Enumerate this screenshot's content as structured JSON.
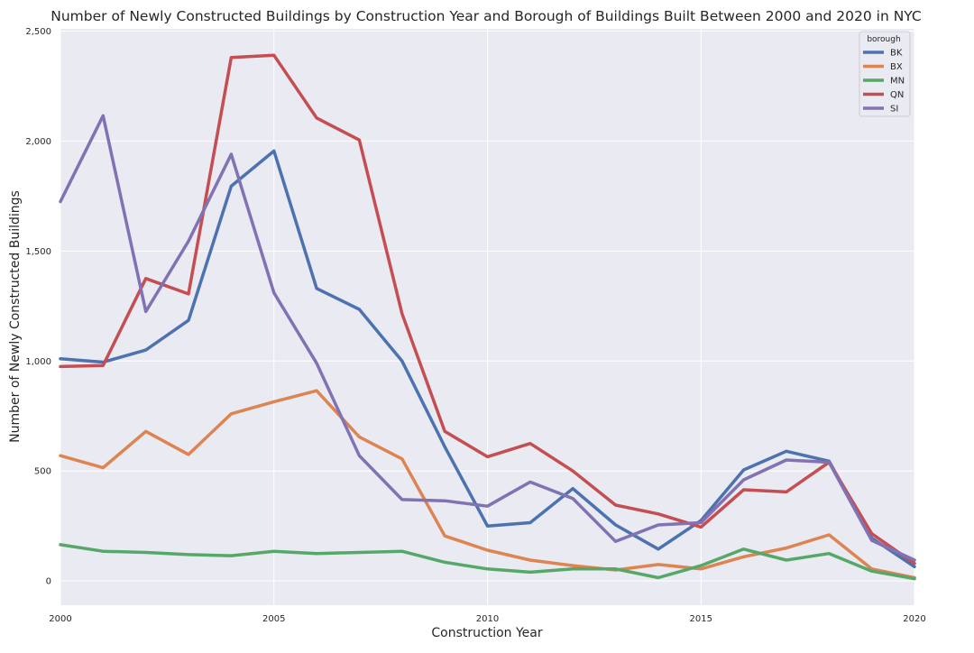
{
  "chart_data": {
    "type": "line",
    "title": "Number of Newly Constructed Buildings by Construction Year and Borough of Buildings Built Between 2000 and 2020 in NYC",
    "xlabel": "Construction Year",
    "ylabel": "Number of Newly Constructed Buildings",
    "xlim": [
      2000,
      2020
    ],
    "ylim": [
      -110,
      2510
    ],
    "x_ticks": [
      2000,
      2005,
      2010,
      2015,
      2020
    ],
    "y_ticks": [
      0,
      500,
      1000,
      1500,
      2000,
      2500
    ],
    "y_tick_labels": [
      "0",
      "500",
      "1,000",
      "1,500",
      "2,000",
      "2,500"
    ],
    "grid": true,
    "legend": {
      "title": "borough",
      "placement": "top-right"
    },
    "x": [
      2000,
      2001,
      2002,
      2003,
      2004,
      2005,
      2006,
      2007,
      2008,
      2009,
      2010,
      2011,
      2012,
      2013,
      2014,
      2015,
      2016,
      2017,
      2018,
      2019,
      2020
    ],
    "series": [
      {
        "name": "BK",
        "color": "#4c72b0",
        "values": [
          1010,
          995,
          1050,
          1185,
          1795,
          1955,
          1330,
          1235,
          1000,
          610,
          250,
          265,
          420,
          255,
          145,
          275,
          505,
          590,
          545,
          195,
          65
        ]
      },
      {
        "name": "BX",
        "color": "#dd8452",
        "values": [
          570,
          515,
          680,
          575,
          760,
          815,
          865,
          655,
          555,
          205,
          140,
          95,
          70,
          50,
          75,
          55,
          110,
          150,
          210,
          55,
          15
        ]
      },
      {
        "name": "MN",
        "color": "#55a868",
        "values": [
          165,
          135,
          130,
          120,
          115,
          135,
          125,
          130,
          135,
          85,
          55,
          40,
          55,
          55,
          15,
          70,
          145,
          95,
          125,
          45,
          10
        ]
      },
      {
        "name": "QN",
        "color": "#c44e52",
        "values": [
          975,
          980,
          1375,
          1305,
          2380,
          2390,
          2105,
          2005,
          1215,
          680,
          565,
          625,
          500,
          345,
          305,
          245,
          415,
          405,
          540,
          215,
          80
        ]
      },
      {
        "name": "SI",
        "color": "#8172b3",
        "values": [
          1725,
          2115,
          1225,
          1545,
          1940,
          1310,
          990,
          570,
          370,
          365,
          340,
          450,
          375,
          180,
          255,
          265,
          460,
          550,
          540,
          185,
          95
        ]
      }
    ]
  }
}
